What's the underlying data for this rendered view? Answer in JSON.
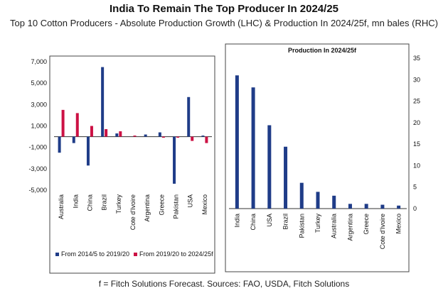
{
  "title": "India To Remain The Top Producer In 2024/25",
  "subtitle": "Top 10 Cotton Producers - Absolute Production Growth (LHC) & Production In 2024/25f, mn bales (RHC)",
  "footer": "f = Fitch Solutions Forecast. Sources: FAO, USDA, Fitch Solutions",
  "colors": {
    "navy": "#1f3c88",
    "red": "#cc1144"
  },
  "chart_data": [
    {
      "type": "bar",
      "categories": [
        "Australia",
        "India",
        "China",
        "Brazil",
        "Turkey",
        "Cote d'Ivoire",
        "Argentina",
        "Greece",
        "Pakistan",
        "USA",
        "Mexico"
      ],
      "series": [
        {
          "name": "From 2014/5 to 2019/20",
          "color": "#1f3c88",
          "values": [
            -1500,
            -600,
            -2700,
            6500,
            300,
            0,
            200,
            400,
            -4400,
            3700,
            100
          ]
        },
        {
          "name": "From 2019/20 to 2024/25f",
          "color": "#cc1144",
          "values": [
            2500,
            2200,
            1000,
            700,
            500,
            100,
            0,
            -100,
            -100,
            -400,
            -600
          ]
        }
      ],
      "yticks": [
        7000,
        5000,
        3000,
        1000,
        -1000,
        -3000,
        -5000
      ],
      "yticklabels": [
        "7,000",
        "5,000",
        "3,000",
        "1,000",
        "-1,000",
        "-3,000",
        "-5,000"
      ],
      "ylim": [
        -5000,
        7000
      ],
      "legend_position": "bottom"
    },
    {
      "type": "bar",
      "title": "Production In 2024/25f",
      "categories": [
        "India",
        "China",
        "USA",
        "Brazil",
        "Pakistan",
        "Turkey",
        "Australia",
        "Argentina",
        "Greece",
        "Cote d'Ivoire",
        "Mexico"
      ],
      "values": [
        31,
        28.2,
        19.4,
        14.4,
        6,
        3.9,
        3,
        1.1,
        1.1,
        0.9,
        0.7
      ],
      "color": "#1f3c88",
      "yticks": [
        0,
        5,
        10,
        15,
        20,
        25,
        30,
        35
      ],
      "ylim": [
        0,
        35
      ],
      "y_axis_side": "right"
    }
  ]
}
